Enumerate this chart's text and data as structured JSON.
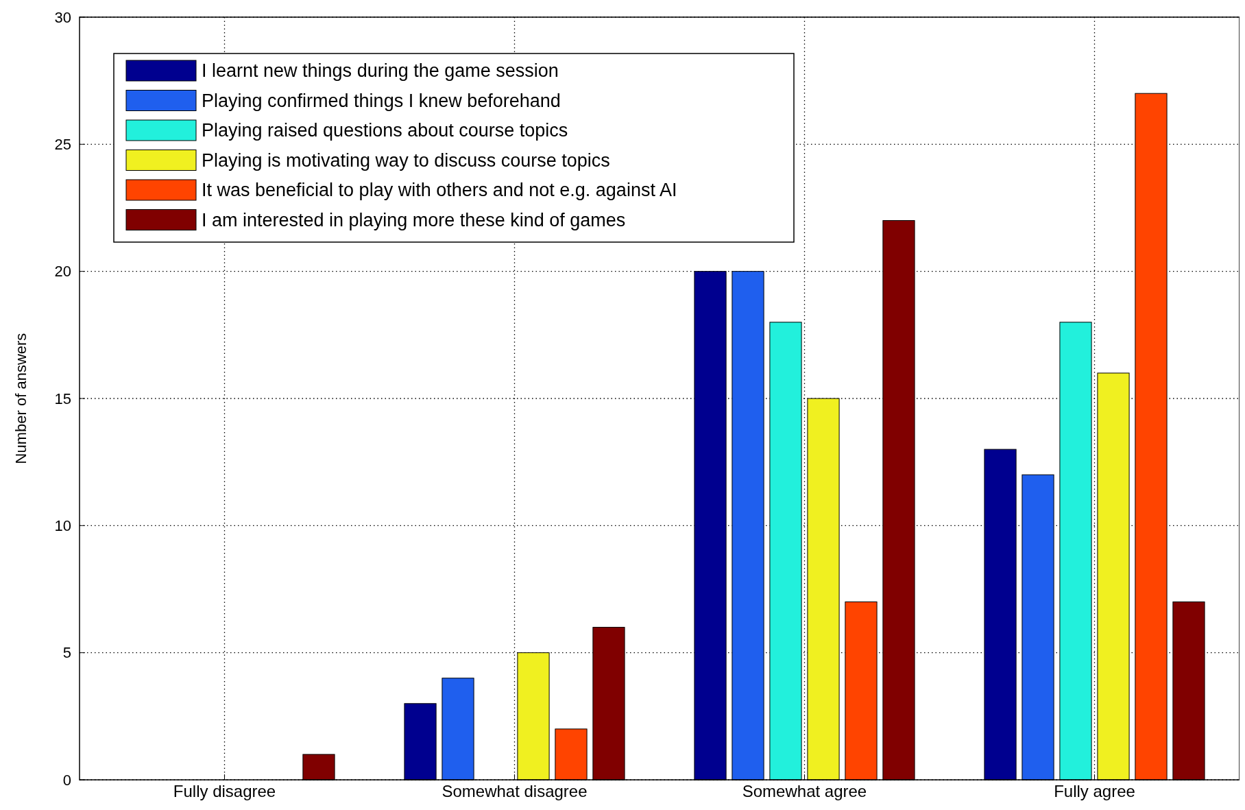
{
  "chart_data": {
    "type": "bar",
    "ylabel": "Number of answers",
    "categories": [
      "Fully disagree",
      "Somewhat disagree",
      "Somewhat agree",
      "Fully agree"
    ],
    "series": [
      {
        "name": "I learnt new things during the game session",
        "color": "#00008f",
        "values": [
          0,
          3,
          20,
          13
        ]
      },
      {
        "name": "Playing confirmed things I knew beforehand",
        "color": "#1f5fee",
        "values": [
          0,
          4,
          20,
          12
        ]
      },
      {
        "name": "Playing raised questions about course topics",
        "color": "#22f0dc",
        "values": [
          0,
          0,
          18,
          18
        ]
      },
      {
        "name": "Playing is motivating way to discuss course topics",
        "color": "#f0f020",
        "values": [
          0,
          5,
          15,
          16
        ]
      },
      {
        "name": "It was beneficial to play with others and not e.g. against AI",
        "color": "#ff4400",
        "values": [
          0,
          2,
          7,
          27
        ]
      },
      {
        "name": "I am interested in playing more these kind of games",
        "color": "#800000",
        "values": [
          1,
          6,
          22,
          7
        ]
      }
    ],
    "ylim": [
      0,
      30
    ],
    "yticks": [
      0,
      5,
      10,
      15,
      20,
      25,
      30
    ],
    "grid": true,
    "legend": "top left"
  }
}
